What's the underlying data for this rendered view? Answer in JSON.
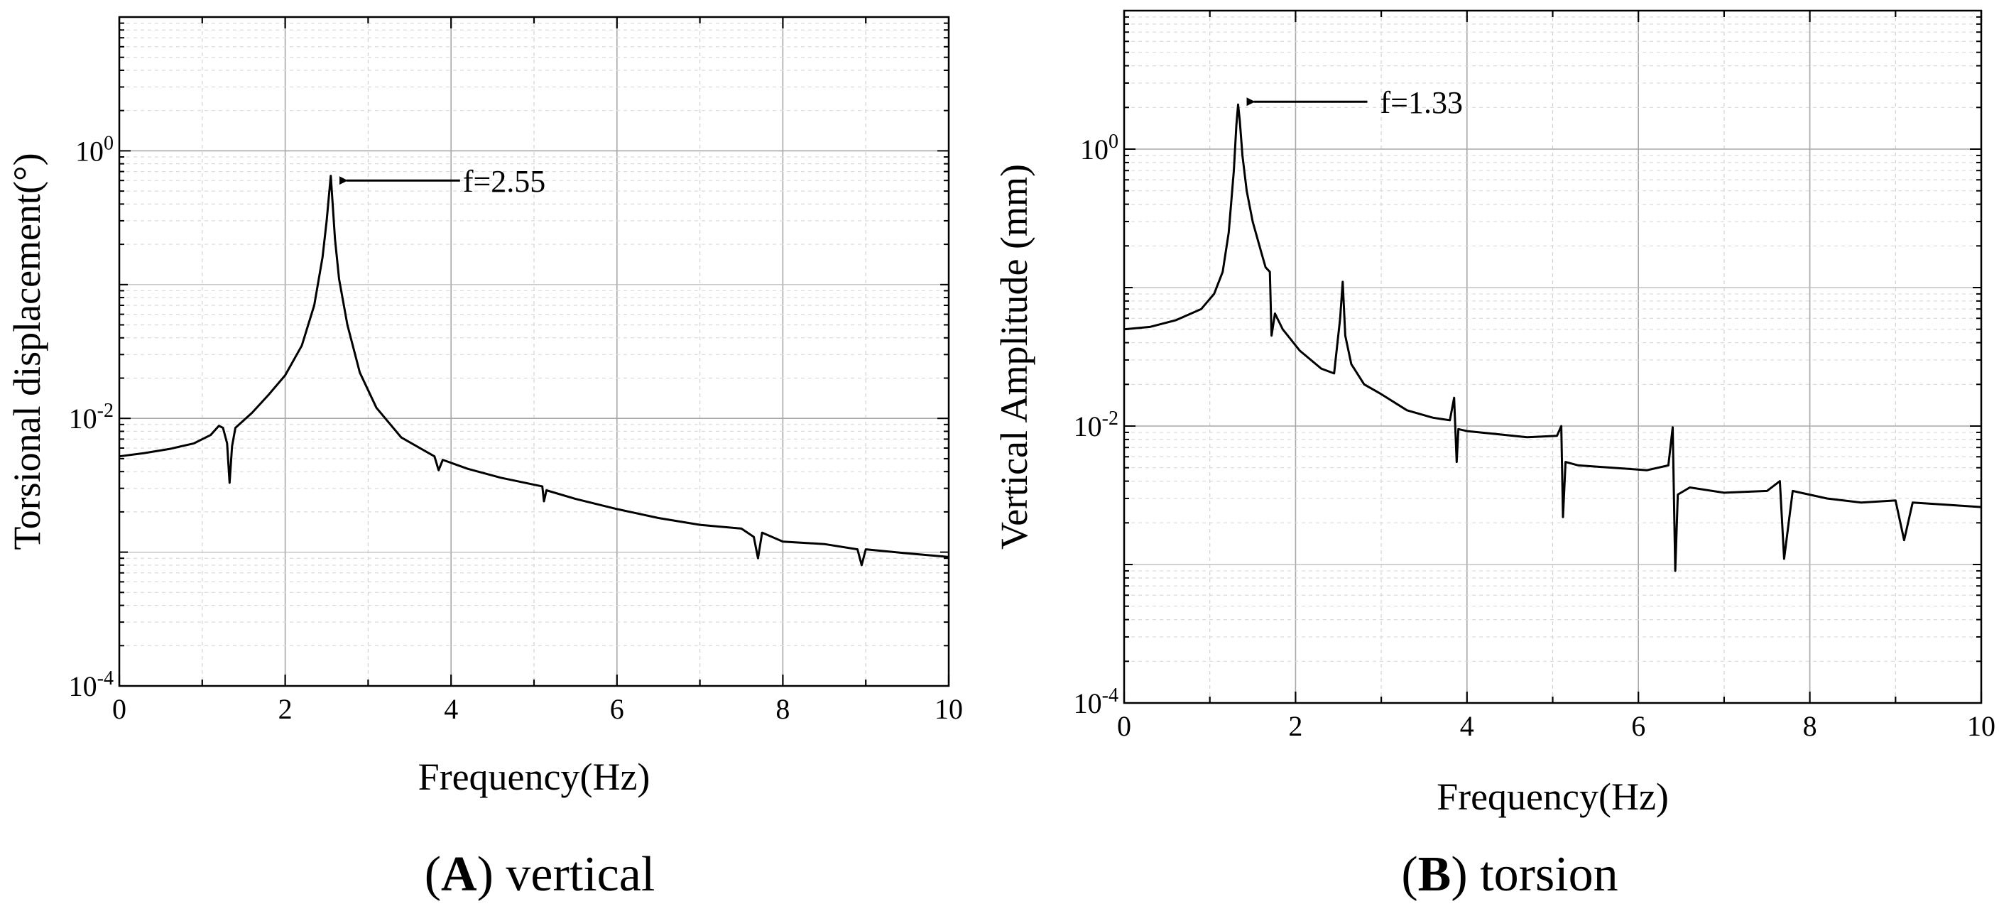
{
  "chart_data": [
    {
      "type": "line",
      "panel_label": "A",
      "panel_caption": "vertical",
      "title": "",
      "xlabel": "Frequency(Hz)",
      "ylabel": "Torsional displacement(°)",
      "x_scale": "linear",
      "y_scale": "log",
      "xlim": [
        0,
        10
      ],
      "ylim": [
        0.0001,
        10
      ],
      "x_ticks": [
        0,
        2,
        4,
        6,
        8,
        10
      ],
      "x_tick_labels": [
        "0",
        "2",
        "4",
        "6",
        "8",
        "10"
      ],
      "y_ticks": [
        0.0001,
        0.01,
        1
      ],
      "y_tick_labels": [
        {
          "base": "10",
          "exp": "-4"
        },
        {
          "base": "10",
          "exp": "-2"
        },
        {
          "base": "10",
          "exp": "0"
        }
      ],
      "grid": true,
      "annotation": {
        "text": "f=2.55",
        "x": 2.55,
        "y": 0.6
      },
      "series": [
        {
          "name": "response",
          "x": [
            0.0,
            0.3,
            0.6,
            0.9,
            1.1,
            1.2,
            1.25,
            1.3,
            1.33,
            1.36,
            1.4,
            1.6,
            1.8,
            2.0,
            2.2,
            2.35,
            2.45,
            2.5,
            2.53,
            2.55,
            2.57,
            2.6,
            2.65,
            2.75,
            2.9,
            3.1,
            3.4,
            3.8,
            3.85,
            3.9,
            4.2,
            4.6,
            5.1,
            5.12,
            5.15,
            5.5,
            6.0,
            6.5,
            7.0,
            7.5,
            7.65,
            7.7,
            7.75,
            8.0,
            8.5,
            8.9,
            8.95,
            9.0,
            9.5,
            10.0
          ],
          "y": [
            0.0052,
            0.0055,
            0.0059,
            0.0065,
            0.0075,
            0.0088,
            0.0085,
            0.0065,
            0.0033,
            0.0062,
            0.0085,
            0.011,
            0.015,
            0.021,
            0.035,
            0.07,
            0.16,
            0.3,
            0.48,
            0.65,
            0.42,
            0.22,
            0.11,
            0.05,
            0.022,
            0.012,
            0.0072,
            0.0052,
            0.0041,
            0.0049,
            0.0042,
            0.0036,
            0.0031,
            0.0024,
            0.0029,
            0.0025,
            0.0021,
            0.0018,
            0.0016,
            0.0015,
            0.0013,
            0.0009,
            0.0014,
            0.0012,
            0.00115,
            0.00105,
            0.0008,
            0.00105,
            0.00098,
            0.00092
          ]
        }
      ]
    },
    {
      "type": "line",
      "panel_label": "B",
      "panel_caption": "torsion",
      "title": "",
      "xlabel": "Frequency(Hz)",
      "ylabel": "Vertical Amplitude (mm)",
      "x_scale": "linear",
      "y_scale": "log",
      "xlim": [
        0,
        10
      ],
      "ylim": [
        0.0001,
        10
      ],
      "x_ticks": [
        0,
        2,
        4,
        6,
        8,
        10
      ],
      "x_tick_labels": [
        "0",
        "2",
        "4",
        "6",
        "8",
        "10"
      ],
      "y_ticks": [
        0.0001,
        0.01,
        1
      ],
      "y_tick_labels": [
        {
          "base": "10",
          "exp": "-4"
        },
        {
          "base": "10",
          "exp": "-2"
        },
        {
          "base": "10",
          "exp": "0"
        }
      ],
      "grid": true,
      "annotation": {
        "text": "f=1.33",
        "x": 1.33,
        "y": 2.2
      },
      "series": [
        {
          "name": "response",
          "x": [
            0.0,
            0.3,
            0.6,
            0.9,
            1.05,
            1.15,
            1.22,
            1.28,
            1.31,
            1.33,
            1.35,
            1.38,
            1.43,
            1.5,
            1.6,
            1.65,
            1.7,
            1.72,
            1.76,
            1.85,
            2.05,
            2.3,
            2.45,
            2.52,
            2.55,
            2.58,
            2.65,
            2.8,
            3.0,
            3.3,
            3.6,
            3.8,
            3.85,
            3.88,
            3.9,
            4.0,
            4.3,
            4.7,
            5.05,
            5.1,
            5.12,
            5.15,
            5.3,
            5.7,
            6.1,
            6.35,
            6.4,
            6.43,
            6.46,
            6.6,
            7.0,
            7.5,
            7.65,
            7.7,
            7.8,
            8.2,
            8.6,
            9.0,
            9.1,
            9.2,
            9.6,
            10.0
          ],
          "y": [
            0.05,
            0.052,
            0.058,
            0.07,
            0.09,
            0.13,
            0.25,
            0.7,
            1.5,
            2.1,
            1.6,
            0.9,
            0.5,
            0.3,
            0.18,
            0.14,
            0.13,
            0.045,
            0.065,
            0.05,
            0.035,
            0.026,
            0.024,
            0.06,
            0.11,
            0.045,
            0.028,
            0.02,
            0.017,
            0.013,
            0.0115,
            0.011,
            0.016,
            0.0055,
            0.0095,
            0.0092,
            0.0088,
            0.0083,
            0.0085,
            0.01,
            0.0022,
            0.0055,
            0.0052,
            0.005,
            0.0048,
            0.0052,
            0.0098,
            0.0009,
            0.0032,
            0.0036,
            0.0033,
            0.0034,
            0.004,
            0.0011,
            0.0034,
            0.003,
            0.0028,
            0.0029,
            0.0015,
            0.0028,
            0.0027,
            0.0026
          ]
        }
      ]
    }
  ]
}
